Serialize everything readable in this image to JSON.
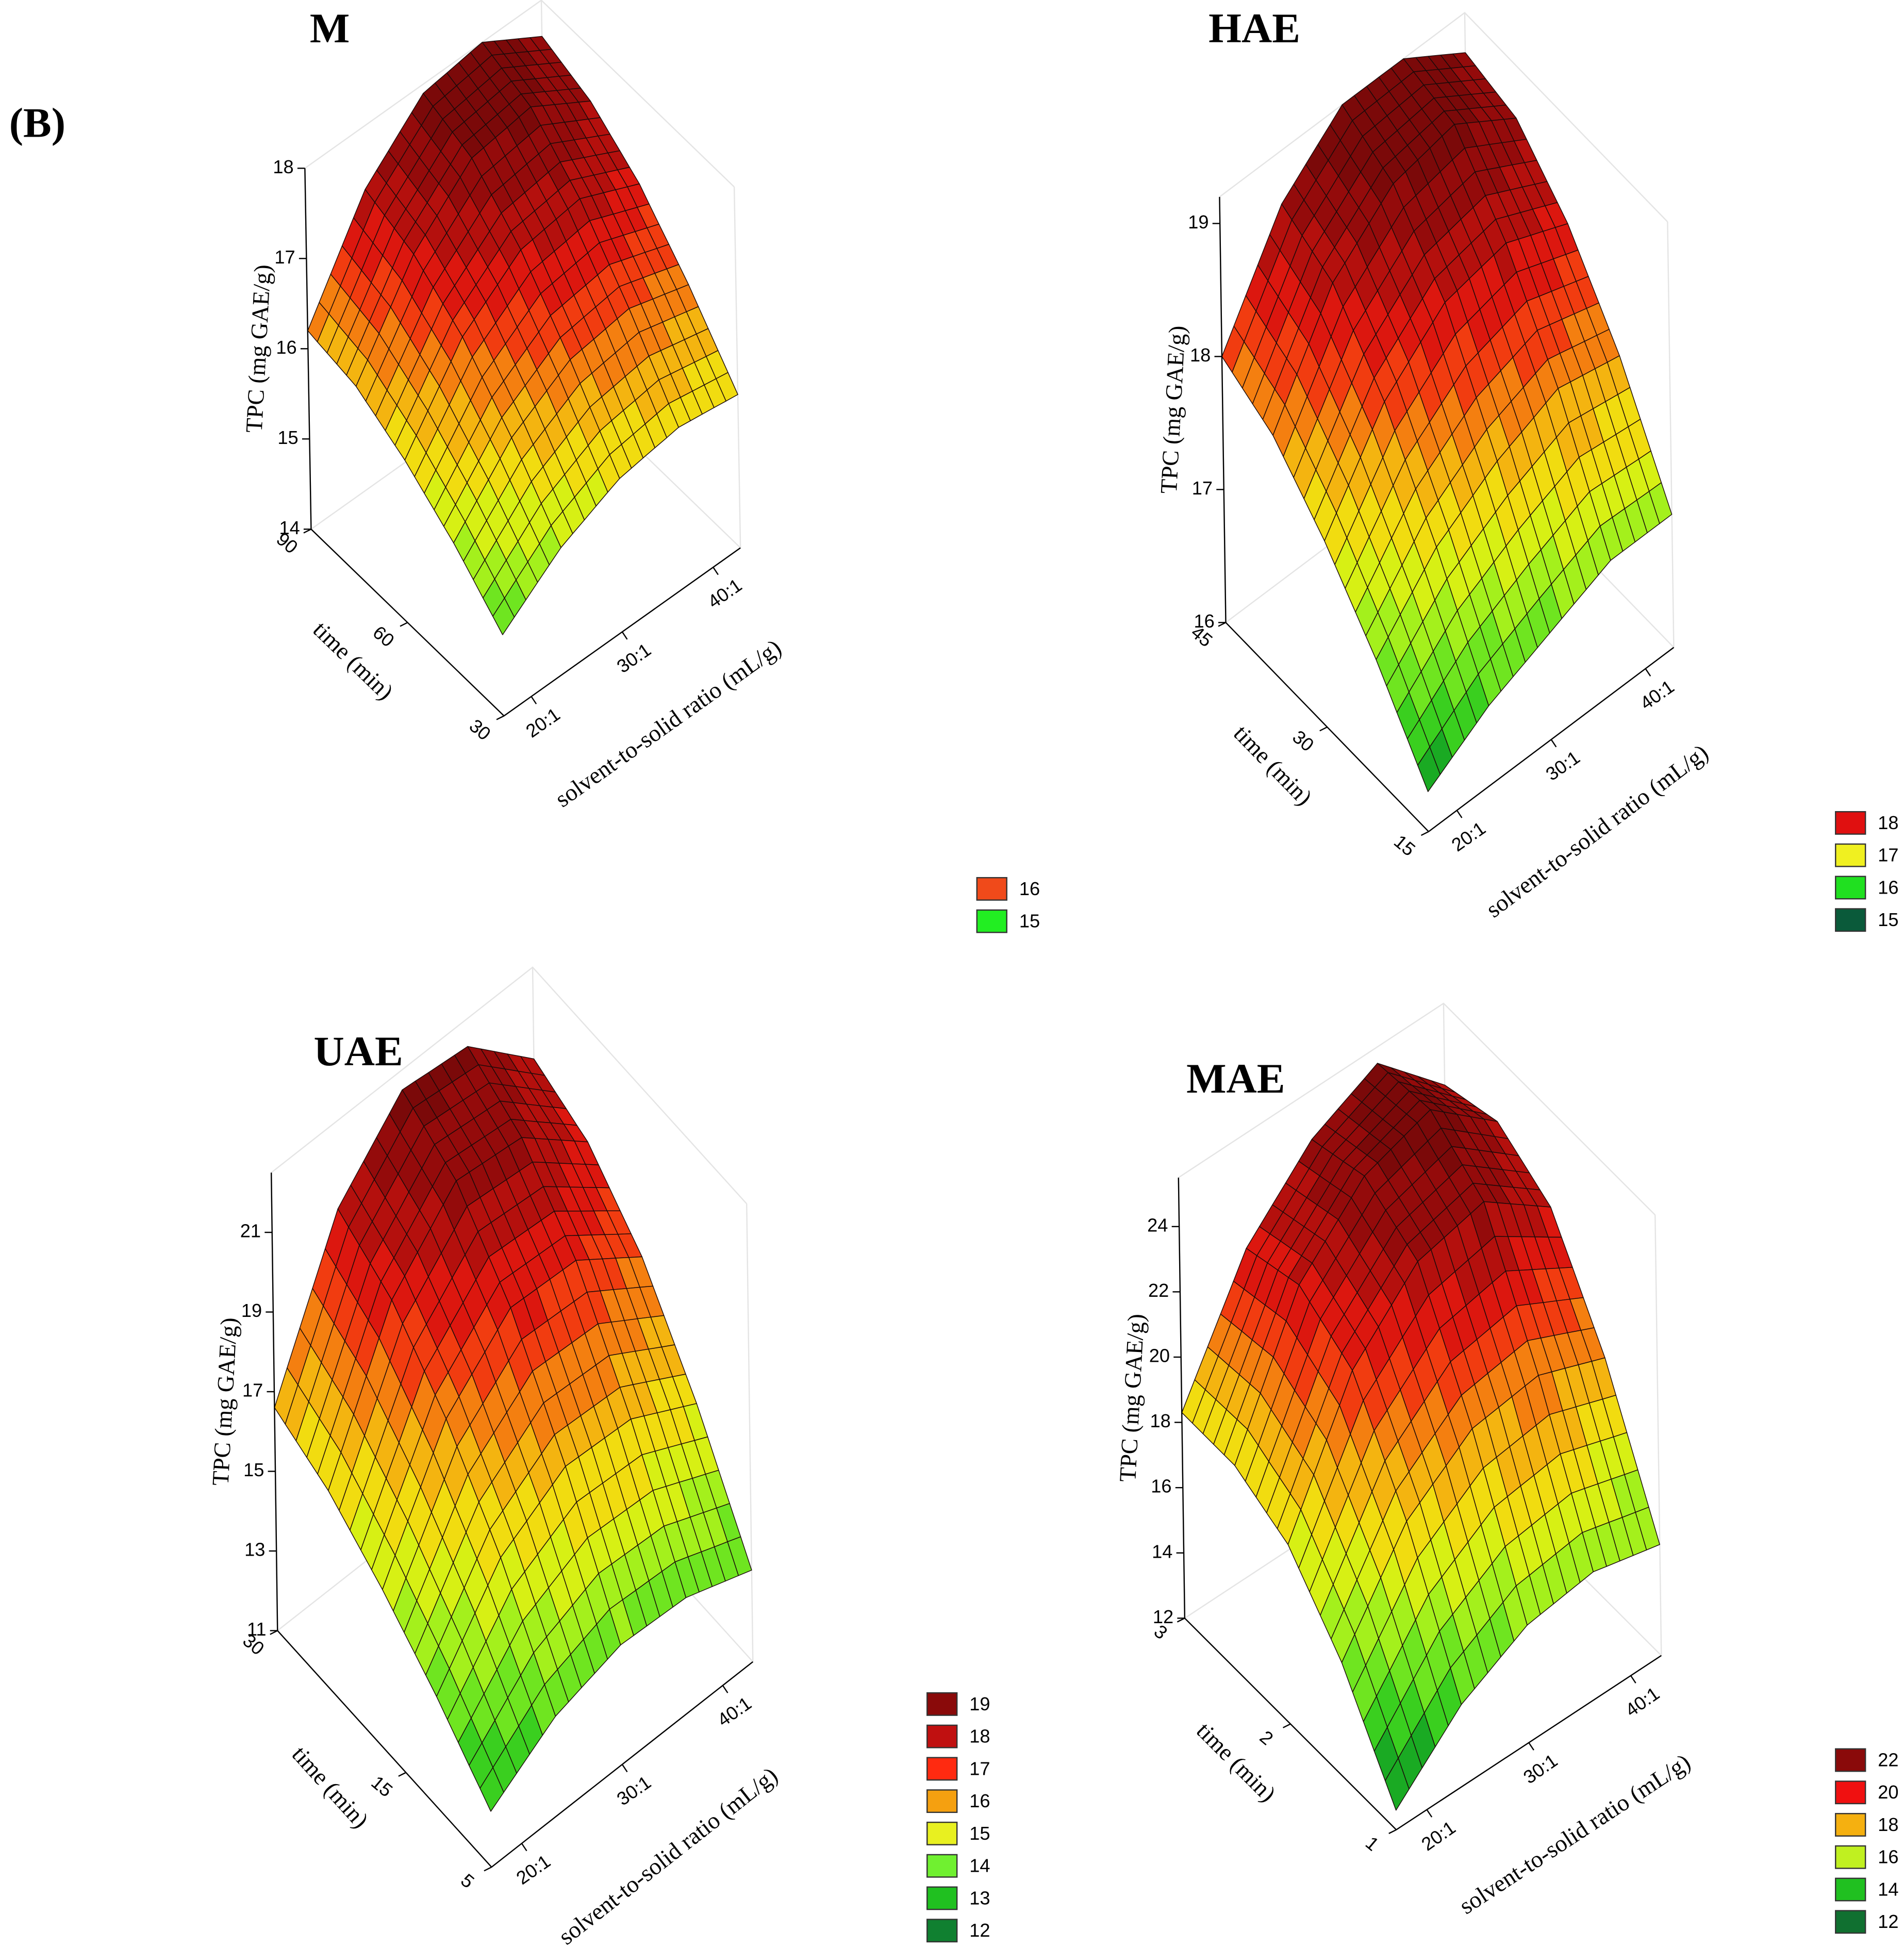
{
  "panel_label": "(B)",
  "chart_data": [
    {
      "type": "surface3d",
      "title": "M",
      "x_label": "solvent-to-solid ratio (mL/g)",
      "y_label": "time (min)",
      "z_label": "TPC (mg GAE/g)",
      "xlim": [
        17,
        43
      ],
      "xticks": [
        {
          "value": 20,
          "label": "20:1"
        },
        {
          "value": 30,
          "label": "30:1"
        },
        {
          "value": 40,
          "label": "40:1"
        }
      ],
      "ylim": [
        30,
        90
      ],
      "yticks": [
        30,
        60,
        90
      ],
      "zlim": [
        14,
        18
      ],
      "zticks": [
        14,
        15,
        16,
        17,
        18
      ],
      "x": [
        17,
        23.5,
        30,
        36.5,
        43
      ],
      "y": [
        30,
        45,
        60,
        75,
        90
      ],
      "z": [
        [
          14.9,
          15.4,
          15.7,
          15.8,
          15.7
        ],
        [
          15.4,
          16.1,
          16.5,
          16.6,
          16.4
        ],
        [
          15.8,
          16.7,
          17.2,
          17.3,
          17.0
        ],
        [
          16.1,
          17.1,
          17.7,
          17.8,
          17.4
        ],
        [
          16.2,
          17.3,
          17.9,
          18.0,
          17.6
        ]
      ],
      "colormap": [
        "#0b5a2e",
        "#1fc41f",
        "#8af020",
        "#f0f010",
        "#f5a010",
        "#f01a10",
        "#a00c0c",
        "#6e0808"
      ],
      "legend": [
        {
          "value": 16,
          "color": "#f04a1a"
        },
        {
          "value": 15,
          "color": "#22ee22"
        }
      ]
    },
    {
      "type": "surface3d",
      "title": "HAE",
      "x_label": "solvent-to-solid ratio (mL/g)",
      "y_label": "time (min)",
      "z_label": "TPC (mg GAE/g)",
      "xlim": [
        17,
        43
      ],
      "xticks": [
        {
          "value": 20,
          "label": "20:1"
        },
        {
          "value": 30,
          "label": "30:1"
        },
        {
          "value": 40,
          "label": "40:1"
        }
      ],
      "ylim": [
        15,
        45
      ],
      "yticks": [
        15,
        30,
        45
      ],
      "zlim": [
        16,
        19.2
      ],
      "zticks": [
        16,
        17,
        18,
        19
      ],
      "x": [
        17,
        23.5,
        30,
        36.5,
        43
      ],
      "y": [
        15,
        22.5,
        30,
        37.5,
        45
      ],
      "z": [
        [
          16.3,
          16.6,
          16.8,
          17.0,
          17.0
        ],
        [
          16.9,
          17.4,
          17.7,
          17.9,
          17.8
        ],
        [
          17.4,
          18.1,
          18.5,
          18.6,
          18.4
        ],
        [
          17.8,
          18.6,
          19.0,
          19.1,
          18.8
        ],
        [
          18.0,
          18.8,
          19.2,
          19.2,
          18.9
        ]
      ],
      "colormap": [
        "#0b5a2e",
        "#1fc41f",
        "#8af020",
        "#f0f010",
        "#f5a010",
        "#f01a10",
        "#a00c0c",
        "#6e0808"
      ],
      "legend": [
        {
          "value": 18,
          "color": "#e01010"
        },
        {
          "value": 17,
          "color": "#f0f020"
        },
        {
          "value": 16,
          "color": "#20e020"
        },
        {
          "value": 15,
          "color": "#0a5a3a"
        }
      ]
    },
    {
      "type": "surface3d",
      "title": "UAE",
      "x_label": "solvent-to-solid ratio (mL/g)",
      "y_label": "time (min)",
      "z_label": "TPC (mg GAE/g)",
      "xlim": [
        17,
        43
      ],
      "xticks": [
        {
          "value": 20,
          "label": "20:1"
        },
        {
          "value": 30,
          "label": "30:1"
        },
        {
          "value": 40,
          "label": "40:1"
        }
      ],
      "ylim": [
        5,
        30
      ],
      "yticks": [
        5,
        15,
        30
      ],
      "zlim": [
        11,
        22.5
      ],
      "zticks": [
        11,
        13,
        15,
        17,
        19,
        21
      ],
      "x": [
        17,
        23.5,
        30,
        36.5,
        43
      ],
      "y": [
        5,
        11.25,
        17.5,
        23.75,
        30
      ],
      "z": [
        [
          12.4,
          13.5,
          14.0,
          13.9,
          13.3
        ],
        [
          13.8,
          16.0,
          17.0,
          16.9,
          16.0
        ],
        [
          15.0,
          18.0,
          19.5,
          19.4,
          18.2
        ],
        [
          16.0,
          19.5,
          21.2,
          21.0,
          19.6
        ],
        [
          16.6,
          20.3,
          22.0,
          21.8,
          20.2
        ]
      ],
      "colormap": [
        "#0b5a2e",
        "#1fc41f",
        "#8af020",
        "#f0f010",
        "#f5a010",
        "#f01a10",
        "#a00c0c",
        "#6e0808"
      ],
      "legend": [
        {
          "value": 19,
          "color": "#8a0a0a"
        },
        {
          "value": 18,
          "color": "#c01010"
        },
        {
          "value": 17,
          "color": "#ff2a10"
        },
        {
          "value": 16,
          "color": "#f5a010"
        },
        {
          "value": 15,
          "color": "#e8f020"
        },
        {
          "value": 14,
          "color": "#70f030"
        },
        {
          "value": 13,
          "color": "#20c020"
        },
        {
          "value": 12,
          "color": "#108030"
        }
      ]
    },
    {
      "type": "surface3d",
      "title": "MAE",
      "x_label": "solvent-to-solid ratio (mL/g)",
      "y_label": "time (min)",
      "z_label": "TPC (mg GAE/g)",
      "xlim": [
        17,
        43
      ],
      "xticks": [
        {
          "value": 20,
          "label": "20:1"
        },
        {
          "value": 30,
          "label": "30:1"
        },
        {
          "value": 40,
          "label": "40:1"
        }
      ],
      "ylim": [
        1,
        3
      ],
      "yticks": [
        1,
        2,
        3
      ],
      "zlim": [
        12,
        25.5
      ],
      "zticks": [
        12,
        14,
        16,
        18,
        20,
        22,
        24
      ],
      "x": [
        17,
        23.5,
        30,
        36.5,
        43
      ],
      "y": [
        1,
        1.5,
        2,
        2.5,
        3
      ],
      "z": [
        [
          12.6,
          14.5,
          15.6,
          15.9,
          15.4
        ],
        [
          15.5,
          18.5,
          20.0,
          20.3,
          19.5
        ],
        [
          17.5,
          21.5,
          23.5,
          24.0,
          22.5
        ],
        [
          18.3,
          22.5,
          24.5,
          25.2,
          23.5
        ],
        [
          18.3,
          22.0,
          24.0,
          25.0,
          23.0
        ]
      ],
      "colormap": [
        "#0b5a2e",
        "#1fc41f",
        "#8af020",
        "#f0f010",
        "#f5a010",
        "#f01a10",
        "#a00c0c",
        "#6e0808"
      ],
      "legend": [
        {
          "value": 22,
          "color": "#8a0a0a"
        },
        {
          "value": 20,
          "color": "#f01010"
        },
        {
          "value": 18,
          "color": "#f5b010"
        },
        {
          "value": 16,
          "color": "#c0f020"
        },
        {
          "value": 14,
          "color": "#20c020"
        },
        {
          "value": 12,
          "color": "#107030"
        }
      ]
    }
  ]
}
